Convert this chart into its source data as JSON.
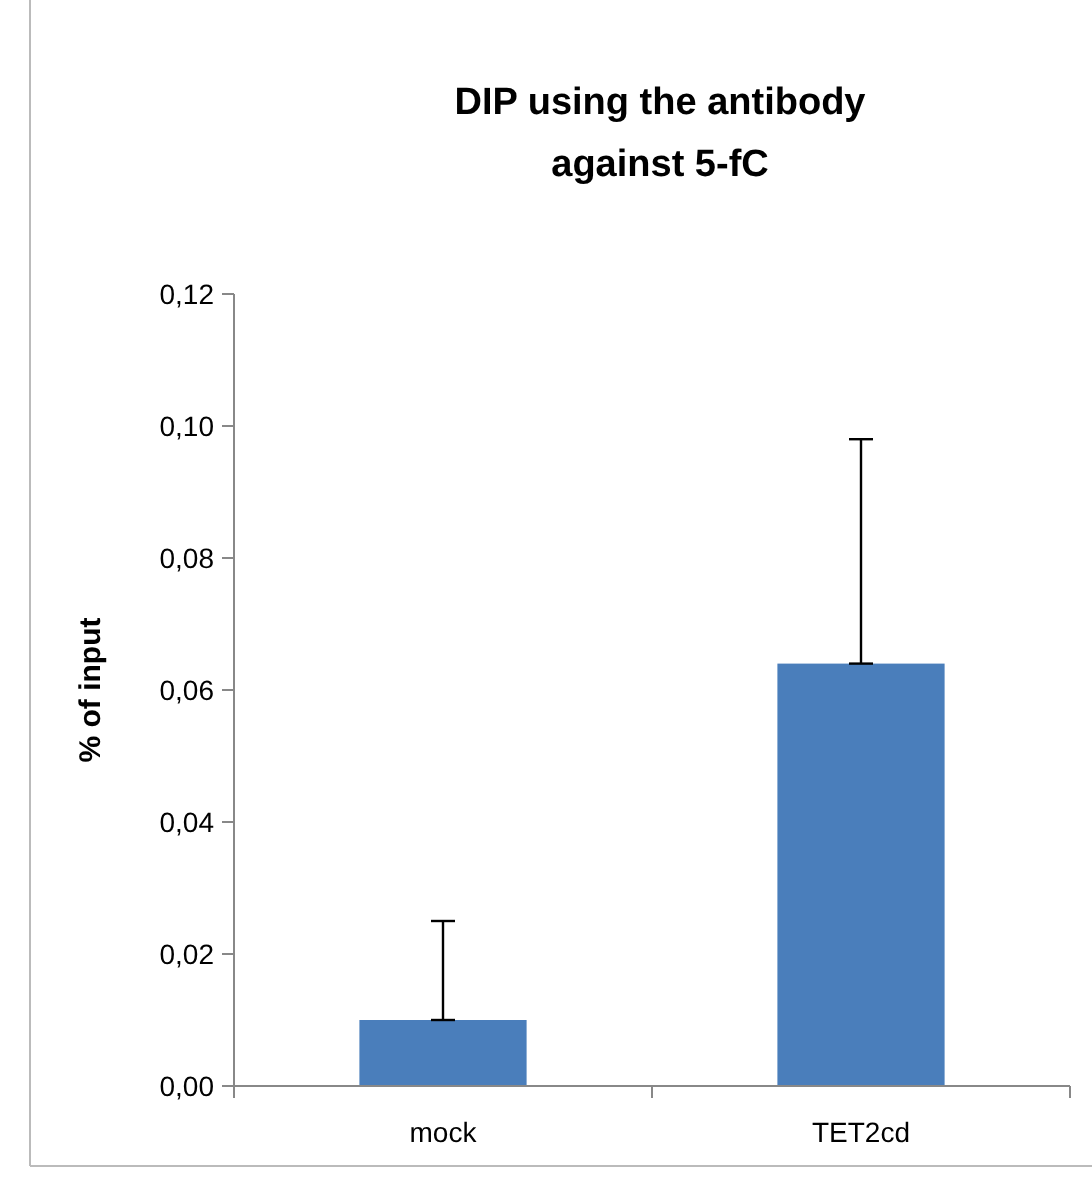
{
  "chart_data": {
    "type": "bar",
    "title": "DIP using the antibody against 5-fC",
    "ylabel": "% of input",
    "categories": [
      "mock",
      "TET2cd"
    ],
    "values": [
      0.01,
      0.064
    ],
    "errors": [
      [
        0.01,
        0.025
      ],
      [
        0.064,
        0.098
      ]
    ],
    "color": "#4a7ebb",
    "ylim": [
      0,
      0.12
    ],
    "yticks": [
      {
        "value": 0,
        "label": "0,00"
      },
      {
        "value": 0.02,
        "label": "0,02"
      },
      {
        "value": 0.04,
        "label": "0,04"
      },
      {
        "value": 0.06,
        "label": "0,06"
      },
      {
        "value": 0.08,
        "label": "0,08"
      },
      {
        "value": 0.1,
        "label": "0,10"
      },
      {
        "value": 0.12,
        "label": "0,12"
      }
    ],
    "grid": false
  }
}
